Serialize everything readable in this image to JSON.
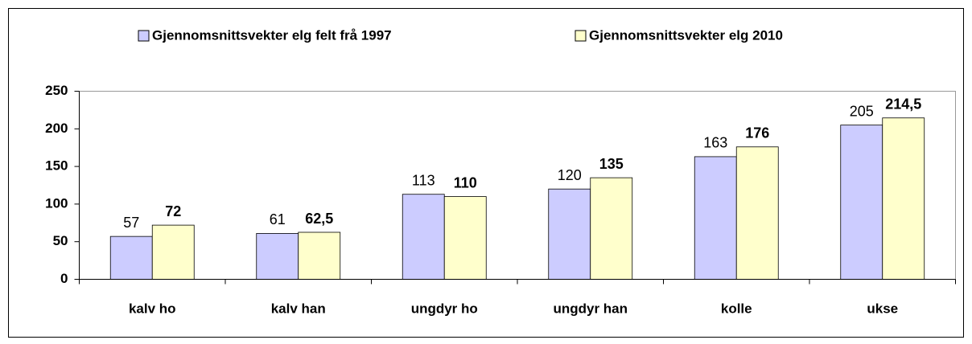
{
  "chart_data": {
    "type": "bar",
    "categories": [
      "kalv ho",
      "kalv han",
      "ungdyr ho",
      "ungdyr han",
      "kolle",
      "ukse"
    ],
    "series": [
      {
        "name": "Gjennomsnittsvekter elg felt frå 1997",
        "color": "#ccccff",
        "values": [
          57,
          61,
          113,
          120,
          163,
          205
        ]
      },
      {
        "name": "Gjennomsnittsvekter elg 2010",
        "color": "#ffffcc",
        "values": [
          72,
          62.5,
          110,
          135,
          176,
          214.5
        ],
        "value_labels": [
          "72",
          "62,5",
          "110",
          "135",
          "176",
          "214,5"
        ]
      }
    ],
    "ylim": [
      0,
      250
    ],
    "yticks": [
      0,
      50,
      100,
      150,
      200,
      250
    ],
    "grid": false,
    "legend": "top"
  }
}
